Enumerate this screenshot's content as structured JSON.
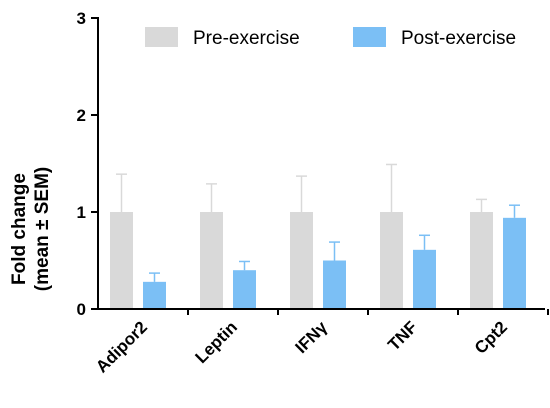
{
  "chart_data": {
    "type": "bar",
    "categories": [
      "Adipor2",
      "Leptin",
      "IFNγ",
      "TNF",
      "Cpt2"
    ],
    "ylabel_lines": [
      "Fold change",
      "(mean ± SEM)"
    ],
    "xlabel": "",
    "ylim": [
      0,
      3
    ],
    "yticks": [
      "0",
      "1",
      "2",
      "3"
    ],
    "grid": false,
    "legend_position": "top-right",
    "series": [
      {
        "name": "Pre-exercise",
        "color": "#d9d9d9",
        "error_color": "#d9d9d9",
        "values": [
          1.0,
          1.0,
          1.0,
          1.0,
          1.0
        ],
        "errors": [
          0.39,
          0.29,
          0.37,
          0.49,
          0.13
        ]
      },
      {
        "name": "Post-exercise",
        "color": "#7bbff5",
        "error_color": "#7bbff5",
        "values": [
          0.28,
          0.4,
          0.5,
          0.61,
          0.94
        ],
        "errors": [
          0.09,
          0.09,
          0.19,
          0.15,
          0.13
        ]
      }
    ]
  }
}
